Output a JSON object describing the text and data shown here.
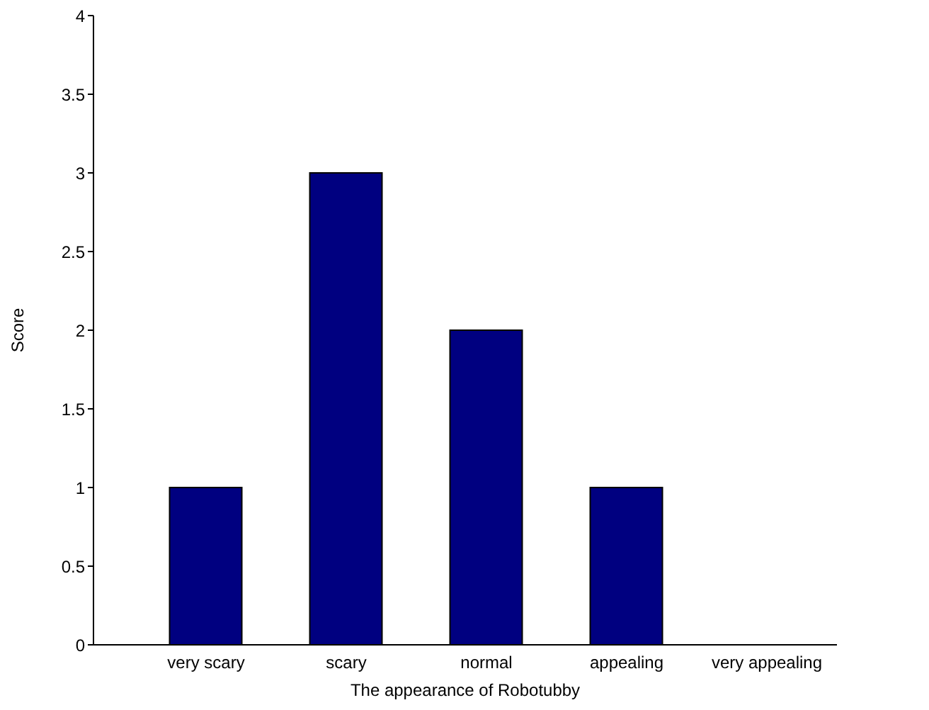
{
  "chart_data": {
    "type": "bar",
    "xlabel": "The appearance of Robotubby",
    "ylabel": "Score",
    "categories": [
      "very scary",
      "scary",
      "normal",
      "appealing",
      "very appealing"
    ],
    "values": [
      1,
      3,
      2,
      1,
      0
    ],
    "color": "#000080",
    "ylim": [
      0,
      4
    ],
    "yticks": [
      0,
      0.5,
      1,
      1.5,
      2,
      2.5,
      3,
      3.5,
      4
    ],
    "grid": false
  }
}
